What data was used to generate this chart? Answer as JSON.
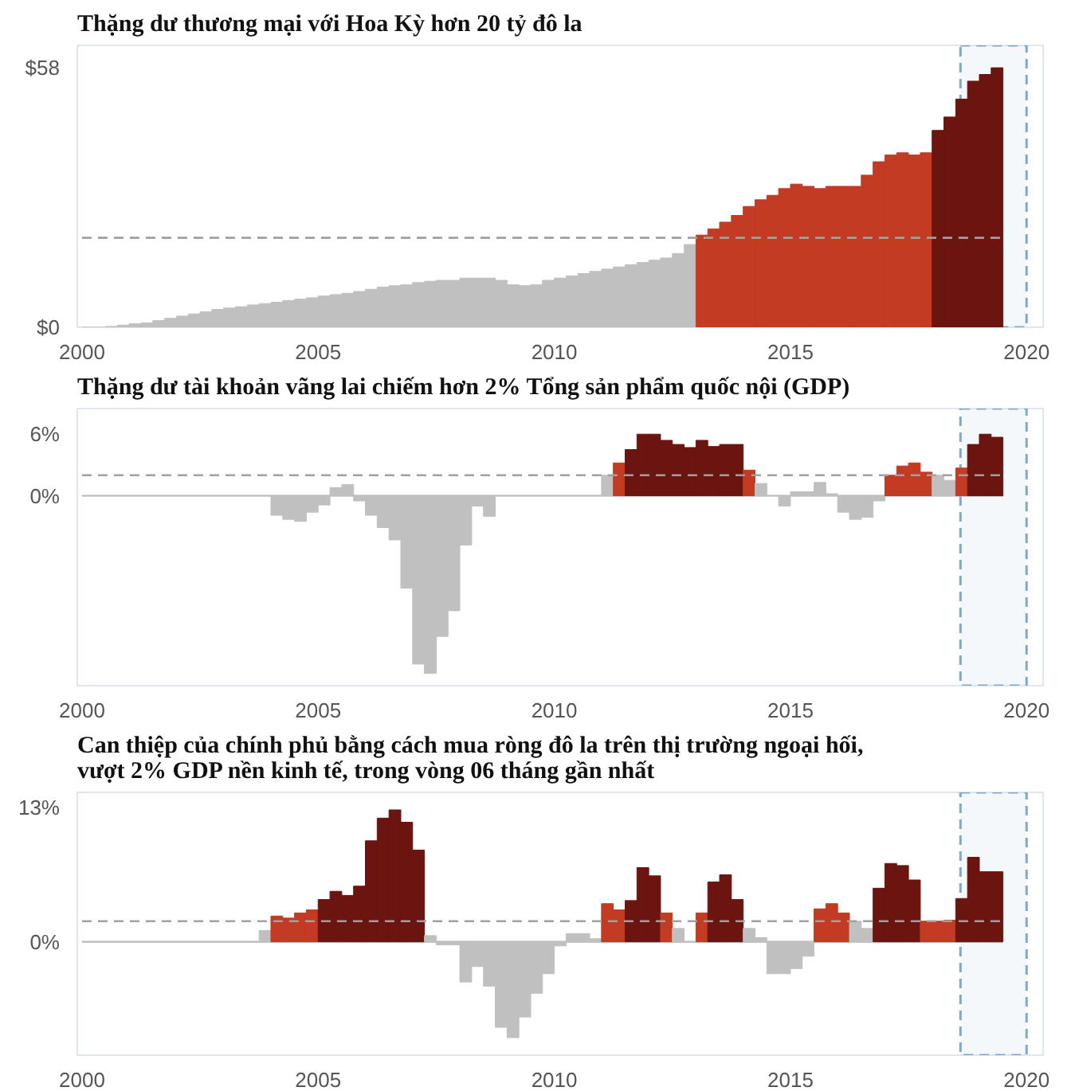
{
  "chart_data": [
    {
      "type": "bar",
      "title": "Thặng dư thương mại với Hoa Kỳ hơn 20 tỷ đô la",
      "x": [
        2000.125,
        2000.375,
        2000.625,
        2000.875,
        2001.125,
        2001.375,
        2001.625,
        2001.875,
        2002.125,
        2002.375,
        2002.625,
        2002.875,
        2003.125,
        2003.375,
        2003.625,
        2003.875,
        2004.125,
        2004.375,
        2004.625,
        2004.875,
        2005.125,
        2005.375,
        2005.625,
        2005.875,
        2006.125,
        2006.375,
        2006.625,
        2006.875,
        2007.125,
        2007.375,
        2007.625,
        2007.875,
        2008.125,
        2008.375,
        2008.625,
        2008.875,
        2009.125,
        2009.375,
        2009.625,
        2009.875,
        2010.125,
        2010.375,
        2010.625,
        2010.875,
        2011.125,
        2011.375,
        2011.625,
        2011.875,
        2012.125,
        2012.375,
        2012.625,
        2012.875,
        2013.125,
        2013.375,
        2013.625,
        2013.875,
        2014.125,
        2014.375,
        2014.625,
        2014.875,
        2015.125,
        2015.375,
        2015.625,
        2015.875,
        2016.125,
        2016.375,
        2016.625,
        2016.875,
        2017.125,
        2017.375,
        2017.625,
        2017.875,
        2018.125,
        2018.375,
        2018.625,
        2018.875,
        2019.125,
        2019.375
      ],
      "values": [
        0,
        0,
        0.2,
        0.5,
        0.8,
        1,
        1.5,
        2,
        2.5,
        3,
        3.5,
        4,
        4.3,
        4.6,
        5,
        5.3,
        5.6,
        6,
        6.3,
        6.6,
        7,
        7.3,
        7.6,
        8,
        8.5,
        9,
        9.3,
        9.5,
        10,
        10.3,
        10.5,
        10.5,
        11,
        11,
        11,
        10.5,
        9.5,
        9.3,
        9.5,
        10.5,
        11,
        11.5,
        12,
        12.5,
        13,
        13.5,
        14,
        14.5,
        15,
        15.5,
        16.5,
        18.5,
        20.6,
        22,
        23.5,
        25,
        27,
        28.5,
        29.5,
        31,
        32,
        31.5,
        31,
        31.5,
        31.5,
        31.5,
        34,
        37,
        38.5,
        39,
        38.5,
        39,
        44,
        47,
        51,
        55,
        56.5,
        58
      ],
      "colors": [
        "#c0c0c0",
        "#c0c0c0",
        "#c0c0c0",
        "#c0c0c0",
        "#c0c0c0",
        "#c0c0c0",
        "#c0c0c0",
        "#c0c0c0",
        "#c0c0c0",
        "#c0c0c0",
        "#c0c0c0",
        "#c0c0c0",
        "#c0c0c0",
        "#c0c0c0",
        "#c0c0c0",
        "#c0c0c0",
        "#c0c0c0",
        "#c0c0c0",
        "#c0c0c0",
        "#c0c0c0",
        "#c0c0c0",
        "#c0c0c0",
        "#c0c0c0",
        "#c0c0c0",
        "#c0c0c0",
        "#c0c0c0",
        "#c0c0c0",
        "#c0c0c0",
        "#c0c0c0",
        "#c0c0c0",
        "#c0c0c0",
        "#c0c0c0",
        "#c0c0c0",
        "#c0c0c0",
        "#c0c0c0",
        "#c0c0c0",
        "#c0c0c0",
        "#c0c0c0",
        "#c0c0c0",
        "#c0c0c0",
        "#c0c0c0",
        "#c0c0c0",
        "#c0c0c0",
        "#c0c0c0",
        "#c0c0c0",
        "#c0c0c0",
        "#c0c0c0",
        "#c0c0c0",
        "#c0c0c0",
        "#c0c0c0",
        "#c0c0c0",
        "#c0c0c0",
        "#c23b22",
        "#c23b22",
        "#c23b22",
        "#c23b22",
        "#c23b22",
        "#c23b22",
        "#c23b22",
        "#c23b22",
        "#c23b22",
        "#c23b22",
        "#c23b22",
        "#c23b22",
        "#c23b22",
        "#c23b22",
        "#c23b22",
        "#c23b22",
        "#c23b22",
        "#c23b22",
        "#c23b22",
        "#c23b22",
        "#6b1410",
        "#6b1410",
        "#6b1410",
        "#6b1410",
        "#6b1410",
        "#6b1410"
      ],
      "xlim": [
        1999.9,
        2020.35
      ],
      "xticks": [
        2000,
        2005,
        2010,
        2015,
        2020
      ],
      "ylim": [
        0,
        63
      ],
      "yticks": [
        {
          "value": 0,
          "label": "$0"
        },
        {
          "value": 58,
          "label": "$58"
        }
      ],
      "ref_lines": [
        {
          "axis": "y",
          "value": 20,
          "color": "#a0a0a0",
          "line_style": "dashed"
        }
      ],
      "bands": [
        {
          "axis": "x",
          "from": 2018.6,
          "to": 2020.0,
          "color": "#7fa8d0"
        }
      ],
      "grid": false
    },
    {
      "type": "bar",
      "title": "Thặng dư tài khoản vãng lai chiếm hơn 2% Tổng sản phẩm quốc nội (GDP)",
      "x": [
        2000.125,
        2000.375,
        2000.625,
        2000.875,
        2001.125,
        2001.375,
        2001.625,
        2001.875,
        2002.125,
        2002.375,
        2002.625,
        2002.875,
        2003.125,
        2003.375,
        2003.625,
        2003.875,
        2004.125,
        2004.375,
        2004.625,
        2004.875,
        2005.125,
        2005.375,
        2005.625,
        2005.875,
        2006.125,
        2006.375,
        2006.625,
        2006.875,
        2007.125,
        2007.375,
        2007.625,
        2007.875,
        2008.125,
        2008.375,
        2008.625,
        2008.875,
        2009.125,
        2009.375,
        2009.625,
        2009.875,
        2010.125,
        2010.375,
        2010.625,
        2010.875,
        2011.125,
        2011.375,
        2011.625,
        2011.875,
        2012.125,
        2012.375,
        2012.625,
        2012.875,
        2013.125,
        2013.375,
        2013.625,
        2013.875,
        2014.125,
        2014.375,
        2014.625,
        2014.875,
        2015.125,
        2015.375,
        2015.625,
        2015.875,
        2016.125,
        2016.375,
        2016.625,
        2016.875,
        2017.125,
        2017.375,
        2017.625,
        2017.875,
        2018.125,
        2018.375,
        2018.625,
        2018.875,
        2019.125,
        2019.375
      ],
      "values": [
        0,
        0,
        0,
        0,
        0,
        0,
        0,
        0,
        0,
        0,
        0,
        0,
        0,
        0,
        0,
        0,
        -1.9,
        -2.3,
        -2.5,
        -1.6,
        -0.9,
        0.8,
        1.1,
        -0.5,
        -1.9,
        -3.1,
        -4.3,
        -9,
        -16.4,
        -17.3,
        -13.7,
        -11.2,
        -4.8,
        -1,
        -2,
        0,
        0,
        0,
        0,
        0,
        0,
        0,
        0,
        0,
        2,
        3.2,
        4.5,
        6,
        6,
        5.4,
        5,
        4.7,
        5.4,
        4.8,
        5,
        5,
        2.5,
        1.2,
        0,
        -1,
        0.4,
        0.4,
        1.3,
        0.2,
        -1.6,
        -2.3,
        -2.1,
        -0.5,
        2,
        2.9,
        3.2,
        2.3,
        2,
        1.5,
        2.7,
        5,
        6,
        5.7
      ],
      "colors": [
        "#c0c0c0",
        "#c0c0c0",
        "#c0c0c0",
        "#c0c0c0",
        "#c0c0c0",
        "#c0c0c0",
        "#c0c0c0",
        "#c0c0c0",
        "#c0c0c0",
        "#c0c0c0",
        "#c0c0c0",
        "#c0c0c0",
        "#c0c0c0",
        "#c0c0c0",
        "#c0c0c0",
        "#c0c0c0",
        "#c0c0c0",
        "#c0c0c0",
        "#c0c0c0",
        "#c0c0c0",
        "#c0c0c0",
        "#c0c0c0",
        "#c0c0c0",
        "#c0c0c0",
        "#c0c0c0",
        "#c0c0c0",
        "#c0c0c0",
        "#c0c0c0",
        "#c0c0c0",
        "#c0c0c0",
        "#c0c0c0",
        "#c0c0c0",
        "#c0c0c0",
        "#c0c0c0",
        "#c0c0c0",
        "#c0c0c0",
        "#c0c0c0",
        "#c0c0c0",
        "#c0c0c0",
        "#c0c0c0",
        "#c0c0c0",
        "#c0c0c0",
        "#c0c0c0",
        "#c0c0c0",
        "#c0c0c0",
        "#c23b22",
        "#6b1410",
        "#6b1410",
        "#6b1410",
        "#6b1410",
        "#6b1410",
        "#6b1410",
        "#6b1410",
        "#6b1410",
        "#6b1410",
        "#6b1410",
        "#c23b22",
        "#c0c0c0",
        "#c0c0c0",
        "#c0c0c0",
        "#c0c0c0",
        "#c0c0c0",
        "#c0c0c0",
        "#c0c0c0",
        "#c0c0c0",
        "#c0c0c0",
        "#c0c0c0",
        "#c0c0c0",
        "#c23b22",
        "#c23b22",
        "#c23b22",
        "#c23b22",
        "#c0c0c0",
        "#c0c0c0",
        "#c23b22",
        "#6b1410",
        "#6b1410",
        "#6b1410"
      ],
      "xlim": [
        1999.9,
        2020.35
      ],
      "xticks": [
        2000,
        2005,
        2010,
        2015,
        2020
      ],
      "ylim": [
        -18.5,
        8.5
      ],
      "yticks": [
        {
          "value": 0,
          "label": "0%"
        },
        {
          "value": 6,
          "label": "6%"
        }
      ],
      "ref_lines": [
        {
          "axis": "y",
          "value": 0,
          "color": "#c8c8c8",
          "line_style": "solid"
        },
        {
          "axis": "y",
          "value": 2,
          "color": "#a0a0a0",
          "line_style": "dashed"
        }
      ],
      "bands": [
        {
          "axis": "x",
          "from": 2018.6,
          "to": 2020.0,
          "color": "#7fa8d0"
        }
      ],
      "grid": false
    },
    {
      "type": "bar",
      "title": "Can thiệp của chính phủ bằng cách mua ròng đô la trên thị trường ngoại hối,\nvượt 2% GDP nền kinh tế, trong vòng 06 tháng gần nhất",
      "x": [
        2000.125,
        2000.375,
        2000.625,
        2000.875,
        2001.125,
        2001.375,
        2001.625,
        2001.875,
        2002.125,
        2002.375,
        2002.625,
        2002.875,
        2003.125,
        2003.375,
        2003.625,
        2003.875,
        2004.125,
        2004.375,
        2004.625,
        2004.875,
        2005.125,
        2005.375,
        2005.625,
        2005.875,
        2006.125,
        2006.375,
        2006.625,
        2006.875,
        2007.125,
        2007.375,
        2007.625,
        2007.875,
        2008.125,
        2008.375,
        2008.625,
        2008.875,
        2009.125,
        2009.375,
        2009.625,
        2009.875,
        2010.125,
        2010.375,
        2010.625,
        2010.875,
        2011.125,
        2011.375,
        2011.625,
        2011.875,
        2012.125,
        2012.375,
        2012.625,
        2012.875,
        2013.125,
        2013.375,
        2013.625,
        2013.875,
        2014.125,
        2014.375,
        2014.625,
        2014.875,
        2015.125,
        2015.375,
        2015.625,
        2015.875,
        2016.125,
        2016.375,
        2016.625,
        2016.875,
        2017.125,
        2017.375,
        2017.625,
        2017.875,
        2018.125,
        2018.375,
        2018.625,
        2018.875,
        2019.125,
        2019.375
      ],
      "values": [
        0,
        0,
        0,
        0,
        0,
        0,
        0,
        0,
        0,
        0,
        0,
        0,
        0,
        0,
        0,
        1.1,
        2.5,
        2.3,
        2.8,
        3.1,
        4.1,
        4.9,
        4.5,
        5.4,
        9.8,
        12,
        12.8,
        11.6,
        8.9,
        0.6,
        -0.3,
        -0.3,
        -3.9,
        -2.4,
        -4.3,
        -8.3,
        -9.3,
        -7.3,
        -5,
        -3.1,
        -0.4,
        0.8,
        0.8,
        0.3,
        3.7,
        3.1,
        4,
        7.2,
        6.4,
        2.8,
        1.3,
        0,
        2.8,
        5.8,
        6.5,
        4.1,
        1.3,
        0.4,
        -3.1,
        -3.1,
        -2.6,
        -1.4,
        3.2,
        3.7,
        2.8,
        2,
        1.3,
        5.2,
        7.6,
        7.4,
        6,
        2,
        2,
        2.1,
        4.2,
        8.2,
        6.8,
        6.8
      ],
      "colors": [
        "#c0c0c0",
        "#c0c0c0",
        "#c0c0c0",
        "#c0c0c0",
        "#c0c0c0",
        "#c0c0c0",
        "#c0c0c0",
        "#c0c0c0",
        "#c0c0c0",
        "#c0c0c0",
        "#c0c0c0",
        "#c0c0c0",
        "#c0c0c0",
        "#c0c0c0",
        "#c0c0c0",
        "#c0c0c0",
        "#c23b22",
        "#c23b22",
        "#c23b22",
        "#c23b22",
        "#6b1410",
        "#6b1410",
        "#6b1410",
        "#6b1410",
        "#6b1410",
        "#6b1410",
        "#6b1410",
        "#6b1410",
        "#6b1410",
        "#c0c0c0",
        "#c0c0c0",
        "#c0c0c0",
        "#c0c0c0",
        "#c0c0c0",
        "#c0c0c0",
        "#c0c0c0",
        "#c0c0c0",
        "#c0c0c0",
        "#c0c0c0",
        "#c0c0c0",
        "#c0c0c0",
        "#c0c0c0",
        "#c0c0c0",
        "#c0c0c0",
        "#c23b22",
        "#c23b22",
        "#6b1410",
        "#6b1410",
        "#6b1410",
        "#c23b22",
        "#c0c0c0",
        "#c0c0c0",
        "#c23b22",
        "#6b1410",
        "#6b1410",
        "#6b1410",
        "#c0c0c0",
        "#c0c0c0",
        "#c0c0c0",
        "#c0c0c0",
        "#c0c0c0",
        "#c0c0c0",
        "#c23b22",
        "#c23b22",
        "#c23b22",
        "#c0c0c0",
        "#c0c0c0",
        "#6b1410",
        "#6b1410",
        "#6b1410",
        "#6b1410",
        "#c23b22",
        "#c23b22",
        "#c23b22",
        "#6b1410",
        "#6b1410",
        "#6b1410",
        "#6b1410"
      ],
      "xlim": [
        1999.9,
        2020.35
      ],
      "xticks": [
        2000,
        2005,
        2010,
        2015,
        2020
      ],
      "ylim": [
        -11,
        14.5
      ],
      "yticks": [
        {
          "value": 0,
          "label": "0%"
        },
        {
          "value": 13,
          "label": "13%"
        }
      ],
      "ref_lines": [
        {
          "axis": "y",
          "value": 0,
          "color": "#c8c8c8",
          "line_style": "solid"
        },
        {
          "axis": "y",
          "value": 2,
          "color": "#a0a0a0",
          "line_style": "dashed"
        }
      ],
      "bands": [
        {
          "axis": "x",
          "from": 2018.6,
          "to": 2020.0,
          "color": "#7fa8d0"
        }
      ],
      "grid": false
    }
  ]
}
